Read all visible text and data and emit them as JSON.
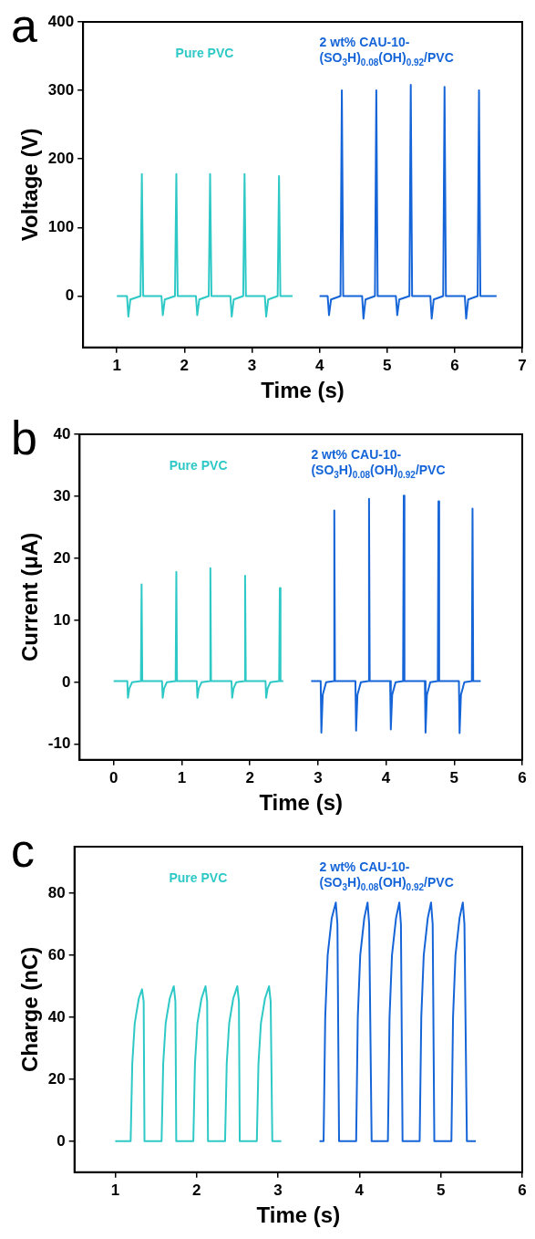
{
  "chart_data": [
    {
      "type": "line",
      "title": "a",
      "xlabel": "Time (s)",
      "ylabel": "Voltage (V)",
      "xlim": [
        0.5,
        7
      ],
      "xticks": [
        1,
        2,
        3,
        4,
        5,
        6,
        7
      ],
      "ylim": [
        -75,
        400
      ],
      "yticks": [
        0,
        100,
        200,
        300,
        400
      ],
      "marker": "none",
      "series": [
        {
          "name": "Pure PVC",
          "color": "#2ec9c6",
          "x": [
            1.0,
            1.15,
            1.17,
            1.2,
            1.35,
            1.37,
            1.39,
            1.66,
            1.68,
            1.71,
            1.86,
            1.88,
            1.9,
            2.17,
            2.19,
            2.22,
            2.36,
            2.38,
            2.4,
            2.68,
            2.7,
            2.73,
            2.87,
            2.89,
            2.91,
            3.19,
            3.21,
            3.24,
            3.38,
            3.4,
            3.42,
            3.6
          ],
          "values": [
            0,
            0,
            -30,
            -5,
            0,
            178,
            0,
            0,
            -28,
            -5,
            0,
            178,
            0,
            0,
            -28,
            -5,
            0,
            178,
            0,
            0,
            -30,
            -5,
            0,
            178,
            0,
            0,
            -30,
            -5,
            0,
            175,
            0,
            0
          ]
        },
        {
          "name": "2 wt% CAU-10-(SO$_{3}$H)$_{0.08}$(OH)$_{0.92}$/PVC",
          "color": "#1565d8",
          "x": [
            4.0,
            4.12,
            4.14,
            4.17,
            4.31,
            4.33,
            4.35,
            4.63,
            4.65,
            4.68,
            4.82,
            4.84,
            4.86,
            5.13,
            5.15,
            5.18,
            5.33,
            5.35,
            5.37,
            5.64,
            5.66,
            5.69,
            5.83,
            5.85,
            5.87,
            6.15,
            6.17,
            6.2,
            6.34,
            6.36,
            6.38,
            6.62
          ],
          "values": [
            0,
            0,
            -28,
            -5,
            0,
            300,
            0,
            0,
            -33,
            -5,
            0,
            300,
            0,
            0,
            -28,
            -5,
            0,
            308,
            0,
            0,
            -33,
            -5,
            0,
            305,
            0,
            0,
            -33,
            -5,
            0,
            300,
            0,
            0
          ]
        }
      ]
    },
    {
      "type": "line",
      "title": "b",
      "xlabel": "Time (s)",
      "ylabel": "Current (μA)",
      "xlim": [
        -0.5,
        6
      ],
      "xticks": [
        0,
        1,
        2,
        3,
        4,
        5,
        6
      ],
      "ylim": [
        -12.5,
        40
      ],
      "yticks": [
        -10,
        0,
        10,
        20,
        30,
        40
      ],
      "marker": "none",
      "series": [
        {
          "name": "Pure PVC",
          "color": "#2ec9c6",
          "x": [
            0,
            0.2,
            0.21,
            0.23,
            0.27,
            0.4,
            0.41,
            0.42,
            0.71,
            0.72,
            0.74,
            0.78,
            0.91,
            0.92,
            0.93,
            1.22,
            1.23,
            1.25,
            1.29,
            1.41,
            1.42,
            1.43,
            1.73,
            1.74,
            1.76,
            1.8,
            1.92,
            1.93,
            1.94,
            2.23,
            2.24,
            2.26,
            2.3,
            2.43,
            2.44,
            2.45,
            2.49
          ],
          "values": [
            0.2,
            0.2,
            -2.5,
            -1,
            0,
            0.2,
            15.8,
            0.2,
            0.2,
            -2.5,
            -1,
            0,
            0.2,
            17.8,
            0.2,
            0.2,
            -2.5,
            -1,
            0,
            0.2,
            18.4,
            0.2,
            0.2,
            -2.5,
            -1,
            0,
            0.2,
            17.2,
            0.2,
            0.2,
            -2.5,
            -1,
            0,
            0.2,
            15.2,
            0.2,
            0.2
          ]
        },
        {
          "name": "2 wt% CAU-10-(SO$_{3}$H)$_{0.08}$(OH)$_{0.92}$/PVC",
          "color": "#1565d8",
          "x": [
            2.9,
            3.04,
            3.05,
            3.07,
            3.12,
            3.23,
            3.24,
            3.25,
            3.55,
            3.56,
            3.58,
            3.63,
            3.74,
            3.75,
            3.76,
            4.06,
            4.07,
            4.09,
            4.14,
            4.25,
            4.26,
            4.27,
            4.57,
            4.58,
            4.6,
            4.65,
            4.76,
            4.77,
            4.78,
            5.07,
            5.08,
            5.1,
            5.15,
            5.26,
            5.27,
            5.28,
            5.39
          ],
          "values": [
            0.2,
            0.2,
            -8.1,
            -2,
            0,
            0.2,
            27.7,
            0.2,
            0.2,
            -7.8,
            -2,
            0,
            0.2,
            29.6,
            0.2,
            0.2,
            -7.6,
            -2,
            0,
            0.2,
            30.1,
            0.2,
            0.2,
            -8.1,
            -2,
            0,
            0.2,
            29.2,
            0.2,
            0.2,
            -8.2,
            -2,
            0,
            0.2,
            28.0,
            0.2,
            0.2
          ]
        }
      ]
    },
    {
      "type": "line",
      "title": "c",
      "xlabel": "Time (s)",
      "ylabel": "Charge (nC)",
      "xlim": [
        0.5,
        6
      ],
      "xticks": [
        1,
        2,
        3,
        4,
        5,
        6
      ],
      "ylim": [
        -10,
        95
      ],
      "yticks": [
        0,
        20,
        40,
        60,
        80
      ],
      "marker": "none",
      "series": [
        {
          "name": "Pure PVC",
          "color": "#2ec9c6",
          "x": [
            1.0,
            1.19,
            1.21,
            1.24,
            1.29,
            1.33,
            1.35,
            1.36,
            1.57,
            1.59,
            1.62,
            1.67,
            1.72,
            1.74,
            1.75,
            1.96,
            1.98,
            2.01,
            2.06,
            2.11,
            2.13,
            2.14,
            2.35,
            2.37,
            2.4,
            2.45,
            2.5,
            2.52,
            2.53,
            2.74,
            2.76,
            2.79,
            2.84,
            2.89,
            2.91,
            2.93,
            3.04
          ],
          "values": [
            0,
            0,
            25,
            38,
            46,
            49,
            45,
            0,
            0,
            25,
            38,
            46,
            50,
            45,
            0,
            0,
            25,
            38,
            46,
            50,
            45,
            0,
            0,
            25,
            38,
            46,
            50,
            45,
            0,
            0,
            25,
            38,
            46,
            50,
            45,
            0,
            0
          ]
        },
        {
          "name": "2 wt% CAU-10-(SO$_{3}$H)$_{0.08}$(OH)$_{0.92}$/PVC",
          "color": "#1565d8",
          "x": [
            3.51,
            3.56,
            3.58,
            3.61,
            3.66,
            3.71,
            3.73,
            3.75,
            3.96,
            3.98,
            4.01,
            4.06,
            4.1,
            4.12,
            4.15,
            4.35,
            4.37,
            4.4,
            4.45,
            4.49,
            4.51,
            4.53,
            4.74,
            4.76,
            4.79,
            4.84,
            4.88,
            4.9,
            4.92,
            5.13,
            5.15,
            5.18,
            5.23,
            5.27,
            5.29,
            5.32,
            5.43
          ],
          "values": [
            0,
            0,
            40,
            60,
            72,
            77,
            70,
            0,
            0,
            40,
            60,
            72,
            77,
            70,
            0,
            0,
            40,
            60,
            72,
            77,
            70,
            0,
            0,
            40,
            60,
            72,
            77,
            70,
            0,
            0,
            40,
            60,
            72,
            77,
            70,
            0,
            0
          ]
        }
      ]
    }
  ]
}
